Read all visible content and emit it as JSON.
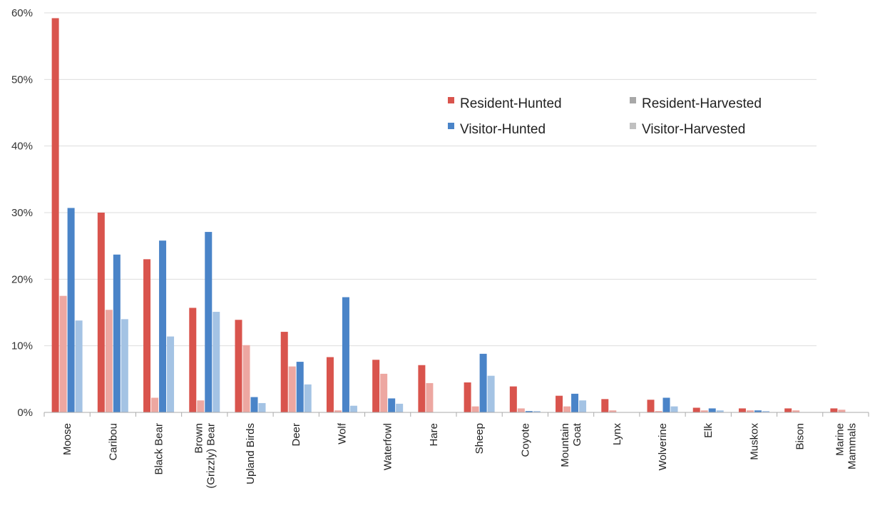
{
  "chart_data": {
    "type": "bar",
    "title": "",
    "xlabel": "",
    "ylabel": "",
    "ylim": [
      0,
      60
    ],
    "y_ticks": [
      "0%",
      "10%",
      "20%",
      "30%",
      "40%",
      "50%",
      "60%"
    ],
    "grid": true,
    "legend_position": "top-right",
    "categories": [
      [
        "Moose"
      ],
      [
        "Caribou"
      ],
      [
        "Black Bear"
      ],
      [
        "Brown",
        "(Grizzly) Bear"
      ],
      [
        "Upland Birds"
      ],
      [
        "Deer"
      ],
      [
        "Wolf"
      ],
      [
        "Waterfowl"
      ],
      [
        "Hare"
      ],
      [
        "Sheep"
      ],
      [
        "Coyote"
      ],
      [
        "Mountain",
        "Goat"
      ],
      [
        "Lynx"
      ],
      [
        "Wolverine"
      ],
      [
        "Elk"
      ],
      [
        "Muskox"
      ],
      [
        "Bison"
      ],
      [
        "Marine",
        "Mammals"
      ]
    ],
    "series": [
      {
        "name": "Resident-Hunted",
        "color": "#d9544d",
        "values": [
          59.2,
          30.0,
          23.0,
          15.7,
          13.9,
          12.1,
          8.3,
          7.9,
          7.1,
          4.5,
          3.9,
          2.5,
          2.0,
          1.9,
          0.7,
          0.6,
          0.6,
          0.6
        ]
      },
      {
        "name": "Resident-Harvested",
        "color": "#eda7a1",
        "values": [
          17.5,
          15.4,
          2.2,
          1.8,
          10.1,
          6.9,
          0.3,
          5.8,
          4.4,
          0.9,
          0.6,
          0.9,
          0.3,
          0.2,
          0.3,
          0.3,
          0.3,
          0.4
        ]
      },
      {
        "name": "Visitor-Hunted",
        "color": "#4a84c8",
        "values": [
          30.7,
          23.7,
          25.8,
          27.1,
          2.3,
          7.6,
          17.3,
          2.1,
          0.0,
          8.8,
          0.2,
          2.8,
          0.0,
          2.2,
          0.6,
          0.3,
          0.0,
          0.0
        ]
      },
      {
        "name": "Visitor-Harvested",
        "color": "#a4c3e4",
        "values": [
          13.8,
          14.0,
          11.4,
          15.1,
          1.4,
          4.2,
          1.0,
          1.3,
          0.0,
          5.5,
          0.2,
          1.8,
          0.0,
          0.9,
          0.3,
          0.2,
          0.0,
          0.0
        ]
      }
    ]
  },
  "legend": [
    {
      "label": "Resident-Hunted",
      "color": "#d9544d"
    },
    {
      "label": "Resident-Harvested",
      "color": "#a8a8a8"
    },
    {
      "label": "Visitor-Hunted",
      "color": "#4a84c8"
    },
    {
      "label": "Visitor-Harvested",
      "color": "#c0c0c0"
    }
  ],
  "colors": {
    "axis": "#aaaaaa",
    "grid": "#dddddd",
    "background": "#ffffff"
  }
}
